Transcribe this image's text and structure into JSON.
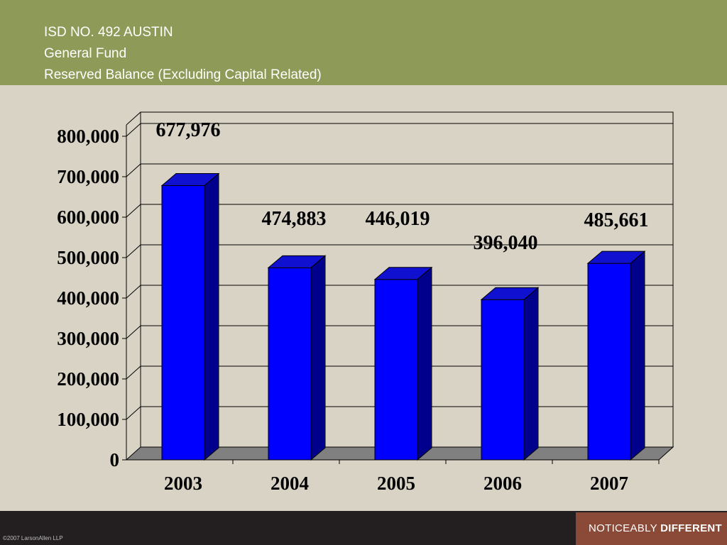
{
  "header": {
    "line1": "ISD NO. 492 AUSTIN",
    "line2": "General Fund",
    "line3": "Reserved Balance (Excluding Capital Related)"
  },
  "footer": {
    "copyright": "©2007 LarsonAllen LLP",
    "tagline_light": "NOTICEABLY ",
    "tagline_bold": "DIFFERENT"
  },
  "colors": {
    "header_bg": "#8e9a57",
    "body_bg": "#d9d3c6",
    "bar_front": "#0000ff",
    "bar_side": "#00008c",
    "bar_top": "#1010d0",
    "floor": "#808080",
    "footer_bg": "#231f20",
    "brand_bg": "#8a4a37"
  },
  "chart_data": {
    "type": "bar",
    "categories": [
      "2003",
      "2004",
      "2005",
      "2006",
      "2007"
    ],
    "values": [
      677976,
      474883,
      446019,
      396040,
      485661
    ],
    "data_labels": [
      "677,976",
      "474,883",
      "446,019",
      "396,040",
      "485,661"
    ],
    "yticks": [
      "0",
      "100,000",
      "200,000",
      "300,000",
      "400,000",
      "500,000",
      "600,000",
      "700,000",
      "800,000"
    ],
    "ylim": [
      0,
      800000
    ],
    "grid": true,
    "legend": "none"
  }
}
